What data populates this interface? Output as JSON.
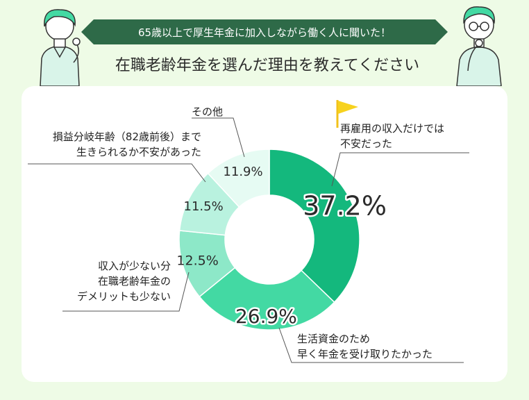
{
  "banner": "65歳以上で厚生年金に加入しながら働く人に聞いた！",
  "heading": "在職老齢年金を選んだ理由を教えてください",
  "chart_data": {
    "type": "pie",
    "title": "在職老齢年金を選んだ理由を教えてください",
    "categories": [
      "再雇用の収入だけでは不安だった",
      "生活資金のため早く年金を受け取りたかった",
      "収入が少ない分在職老齢年金のデメリットも少ない",
      "損益分岐年齢（82歳前後）まで生きられるか不安があった",
      "その他"
    ],
    "values": [
      37.2,
      26.9,
      12.5,
      11.5,
      11.9
    ],
    "value_labels": [
      "37.2%",
      "26.9%",
      "12.5%",
      "11.5%",
      "11.9%"
    ],
    "colors": [
      "#14b87d",
      "#43d9a3",
      "#8de8c8",
      "#b9f2df",
      "#e6fbf3"
    ],
    "labels": [
      [
        "再雇用の収入だけでは",
        "不安だった"
      ],
      [
        "生活資金のため",
        "早く年金を受け取りたかった"
      ],
      [
        "収入が少ない分",
        "在職老齢年金の",
        "デメリットも少ない"
      ],
      [
        "損益分岐年齢（82歳前後）まで",
        "生きられるか不安があった"
      ],
      [
        "その他"
      ]
    ],
    "donut": true,
    "start": "top",
    "direction": "clockwise"
  }
}
